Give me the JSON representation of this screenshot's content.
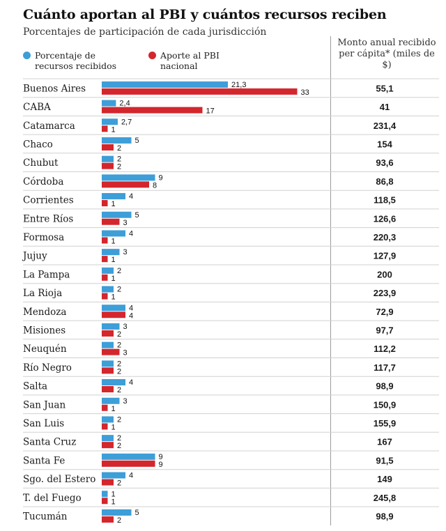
{
  "title": "Cuánto aportan al PBI y cuántos recursos reciben",
  "subtitle": "Porcentajes de participación de cada jurisdicción",
  "legend": {
    "recibidos": "Porcentaje de recursos recibidos",
    "aporte": "Aporte al PBI nacional"
  },
  "monto_header": "Monto anual recibido per cápita* (miles de $)",
  "colors": {
    "recibidos": "#3d9ed8",
    "aporte": "#d3262d",
    "grid": "#d0d0d0"
  },
  "chart_data": {
    "type": "bar",
    "orientation": "horizontal",
    "categories": [
      "Buenos Aires",
      "CABA",
      "Catamarca",
      "Chaco",
      "Chubut",
      "Córdoba",
      "Corrientes",
      "Entre Ríos",
      "Formosa",
      "Jujuy",
      "La Pampa",
      "La Rioja",
      "Mendoza",
      "Misiones",
      "Neuquén",
      "Río Negro",
      "Salta",
      "San Juan",
      "San Luis",
      "Santa Cruz",
      "Santa Fe",
      "Sgo. del Estero",
      "T. del Fuego",
      "Tucumán"
    ],
    "series": [
      {
        "name": "Porcentaje de recursos recibidos",
        "values": [
          21.3,
          2.4,
          2.7,
          5,
          2,
          9,
          4,
          5,
          4,
          3,
          2,
          2,
          4,
          3,
          2,
          2,
          4,
          3,
          2,
          2,
          9,
          4,
          1,
          5
        ],
        "labels": [
          "21,3",
          "2,4",
          "2,7",
          "5",
          "2",
          "9",
          "4",
          "5",
          "4",
          "3",
          "2",
          "2",
          "4",
          "3",
          "2",
          "2",
          "4",
          "3",
          "2",
          "2",
          "9",
          "4",
          "1",
          "5"
        ]
      },
      {
        "name": "Aporte al PBI nacional",
        "values": [
          33,
          17,
          1,
          2,
          2,
          8,
          1,
          3,
          1,
          1,
          1,
          1,
          4,
          2,
          3,
          2,
          2,
          1,
          1,
          2,
          9,
          2,
          1,
          2
        ],
        "labels": [
          "33",
          "17",
          "1",
          "2",
          "2",
          "8",
          "1",
          "3",
          "1",
          "1",
          "1",
          "1",
          "4",
          "2",
          "3",
          "2",
          "2",
          "1",
          "1",
          "2",
          "9",
          "2",
          "1",
          "2"
        ]
      }
    ],
    "monto": [
      "55,1",
      "41",
      "231,4",
      "154",
      "93,6",
      "86,8",
      "118,5",
      "126,6",
      "220,3",
      "127,9",
      "200",
      "223,9",
      "72,9",
      "97,7",
      "112,2",
      "117,7",
      "98,9",
      "150,9",
      "155,9",
      "167",
      "91,5",
      "149",
      "245,8",
      "98,9"
    ],
    "xlim": [
      0,
      33
    ],
    "grid": true
  }
}
